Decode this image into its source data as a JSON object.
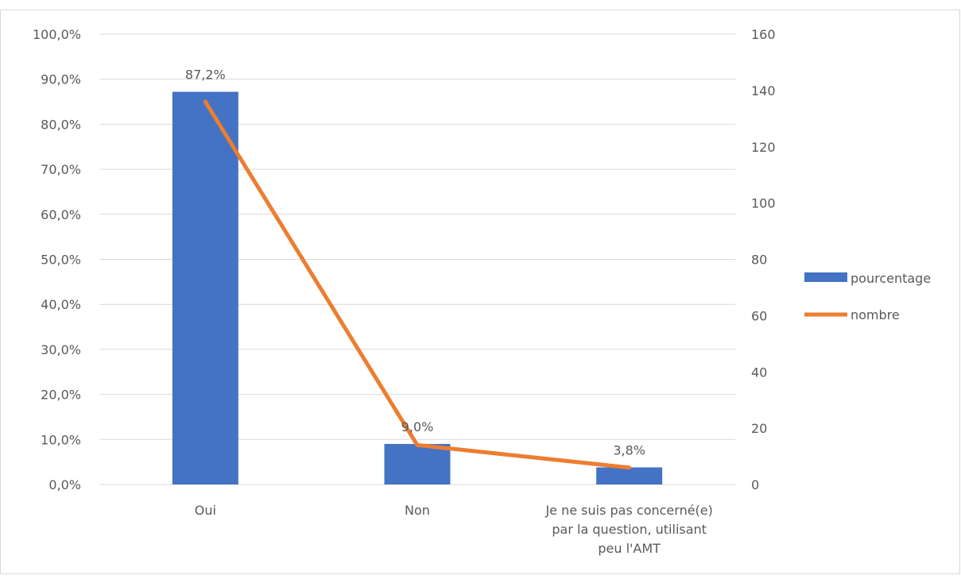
{
  "chart_data": {
    "type": "bar",
    "categories": [
      [
        "Oui"
      ],
      [
        "Non"
      ],
      [
        "Je ne suis pas concerné(e)",
        "par la question, utilisant",
        "peu l'AMT"
      ]
    ],
    "series": [
      {
        "name": "pourcentage",
        "kind": "bar",
        "axis": "left",
        "values": [
          87.2,
          9.0,
          3.8
        ],
        "data_labels": [
          "87,2%",
          "9,0%",
          "3,8%"
        ],
        "color": "#4472C4"
      },
      {
        "name": "nombre",
        "kind": "line",
        "axis": "right",
        "values": [
          136,
          14,
          6
        ],
        "color": "#ED7D31"
      }
    ],
    "y_left": {
      "range": [
        0,
        100
      ],
      "ticks": [
        0,
        10,
        20,
        30,
        40,
        50,
        60,
        70,
        80,
        90,
        100
      ],
      "tick_labels": [
        "0,0%",
        "10,0%",
        "20,0%",
        "30,0%",
        "40,0%",
        "50,0%",
        "60,0%",
        "70,0%",
        "80,0%",
        "90,0%",
        "100,0%"
      ]
    },
    "y_right": {
      "range": [
        0,
        160
      ],
      "ticks": [
        0,
        20,
        40,
        60,
        80,
        100,
        120,
        140,
        160
      ],
      "tick_labels": [
        "0",
        "20",
        "40",
        "60",
        "80",
        "100",
        "120",
        "140",
        "160"
      ]
    },
    "gridlines": true,
    "legend_position": "right"
  }
}
